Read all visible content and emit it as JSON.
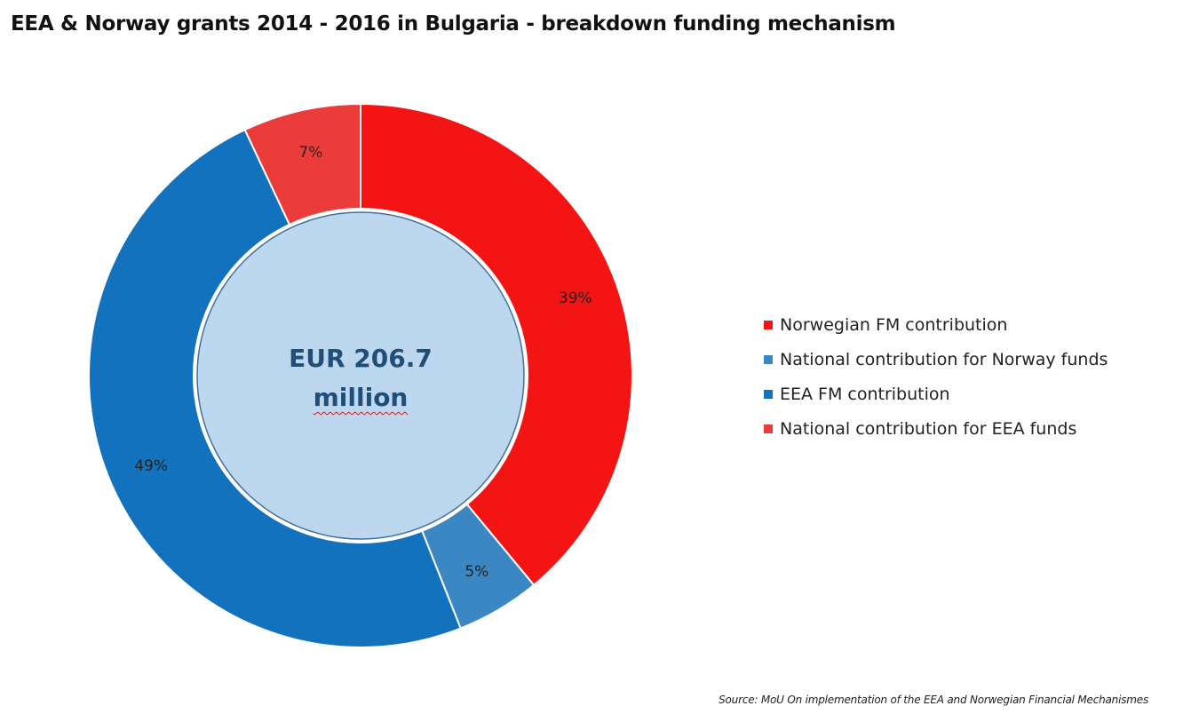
{
  "chart_data": {
    "type": "pie",
    "title": "EEA & Norway grants 2014 - 2016 in Bulgaria - breakdown funding mechanism",
    "center_label": [
      "EUR 206.7",
      "million"
    ],
    "categories": [
      "Norwegian FM contribution",
      "National contribution for Norway funds",
      "EEA FM contribution",
      "National contribution for EEA funds"
    ],
    "values": [
      39,
      5,
      49,
      7
    ],
    "value_labels": [
      "39%",
      "5%",
      "49%",
      "7%"
    ],
    "colors": [
      "#f51414",
      "#3a87c4",
      "#1372bd",
      "#ec3b3b"
    ],
    "center_color": "#bdd7ee",
    "center_border_color": "#41719c",
    "legend_position": "right",
    "source": "Source: MoU On implementation of the EEA and Norwegian Financial Mechanismes"
  }
}
